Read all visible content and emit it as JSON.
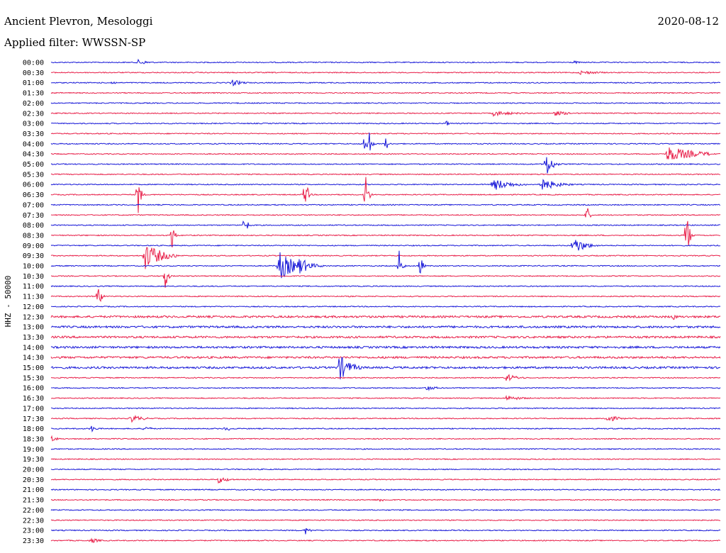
{
  "header": {
    "station": "Ancient Plevron, Mesologgi",
    "date": "2020-08-12",
    "filter": "Applied filter: WWSSN-SP"
  },
  "chart_data": {
    "type": "line",
    "title": "Ancient Plevron, Mesologgi",
    "ylabel": "HHZ - 50000",
    "y_tick_labels": [
      "00:00",
      "00:30",
      "01:00",
      "01:30",
      "02:00",
      "02:30",
      "03:00",
      "03:30",
      "04:00",
      "04:30",
      "05:00",
      "05:30",
      "06:00",
      "06:30",
      "07:00",
      "07:30",
      "08:00",
      "08:30",
      "09:00",
      "09:30",
      "10:00",
      "10:30",
      "11:00",
      "11:30",
      "12:00",
      "12:30",
      "13:00",
      "13:30",
      "14:00",
      "14:30",
      "15:00",
      "15:30",
      "16:00",
      "16:30",
      "17:00",
      "17:30",
      "18:00",
      "18:30",
      "19:00",
      "19:30",
      "20:00",
      "20:30",
      "21:00",
      "21:30",
      "22:00",
      "22:30",
      "23:00",
      "23:30"
    ],
    "trace_colors": [
      "#1a1ad8",
      "#e8204a"
    ],
    "grid": false,
    "events": [
      {
        "row": 0,
        "x": 0.13,
        "amp": 4,
        "dur": 0.02
      },
      {
        "row": 0,
        "x": 0.78,
        "amp": 3,
        "dur": 0.01
      },
      {
        "row": 1,
        "x": 0.79,
        "amp": 3,
        "dur": 0.04
      },
      {
        "row": 2,
        "x": 0.09,
        "amp": 3,
        "dur": 0.01
      },
      {
        "row": 2,
        "x": 0.27,
        "amp": 5,
        "dur": 0.02
      },
      {
        "row": 5,
        "x": 0.66,
        "amp": 4,
        "dur": 0.04
      },
      {
        "row": 5,
        "x": 0.75,
        "amp": 4,
        "dur": 0.03
      },
      {
        "row": 6,
        "x": 0.59,
        "amp": 6,
        "dur": 0.004
      },
      {
        "row": 8,
        "x": 0.47,
        "amp": 30,
        "dur": 0.004
      },
      {
        "row": 8,
        "x": 0.475,
        "amp": 24,
        "dur": 0.004
      },
      {
        "row": 8,
        "x": 0.5,
        "amp": 12,
        "dur": 0.004
      },
      {
        "row": 9,
        "x": 0.92,
        "amp": 12,
        "dur": 0.05
      },
      {
        "row": 10,
        "x": 0.74,
        "amp": 20,
        "dur": 0.01
      },
      {
        "row": 12,
        "x": 0.66,
        "amp": 10,
        "dur": 0.03
      },
      {
        "row": 12,
        "x": 0.73,
        "amp": 10,
        "dur": 0.03
      },
      {
        "row": 13,
        "x": 0.13,
        "amp": 36,
        "dur": 0.004
      },
      {
        "row": 13,
        "x": 0.38,
        "amp": 30,
        "dur": 0.004
      },
      {
        "row": 13,
        "x": 0.47,
        "amp": 40,
        "dur": 0.004
      },
      {
        "row": 15,
        "x": 0.8,
        "amp": 20,
        "dur": 0.004
      },
      {
        "row": 16,
        "x": 0.29,
        "amp": 20,
        "dur": 0.004
      },
      {
        "row": 17,
        "x": 0.18,
        "amp": 30,
        "dur": 0.004
      },
      {
        "row": 17,
        "x": 0.95,
        "amp": 44,
        "dur": 0.004
      },
      {
        "row": 18,
        "x": 0.78,
        "amp": 14,
        "dur": 0.02
      },
      {
        "row": 19,
        "x": 0.14,
        "amp": 20,
        "dur": 0.03
      },
      {
        "row": 20,
        "x": 0.34,
        "amp": 22,
        "dur": 0.03
      },
      {
        "row": 20,
        "x": 0.37,
        "amp": 14,
        "dur": 0.02
      },
      {
        "row": 20,
        "x": 0.52,
        "amp": 34,
        "dur": 0.004
      },
      {
        "row": 20,
        "x": 0.55,
        "amp": 30,
        "dur": 0.004
      },
      {
        "row": 21,
        "x": 0.17,
        "amp": 28,
        "dur": 0.004
      },
      {
        "row": 23,
        "x": 0.07,
        "amp": 32,
        "dur": 0.004
      },
      {
        "row": 25,
        "x": 0.93,
        "amp": 8,
        "dur": 0.004
      },
      {
        "row": 30,
        "x": 0.43,
        "amp": 20,
        "dur": 0.02
      },
      {
        "row": 31,
        "x": 0.68,
        "amp": 6,
        "dur": 0.02
      },
      {
        "row": 32,
        "x": 0.56,
        "amp": 4,
        "dur": 0.02
      },
      {
        "row": 33,
        "x": 0.68,
        "amp": 4,
        "dur": 0.03
      },
      {
        "row": 35,
        "x": 0.12,
        "amp": 6,
        "dur": 0.02
      },
      {
        "row": 35,
        "x": 0.83,
        "amp": 6,
        "dur": 0.02
      },
      {
        "row": 36,
        "x": 0.06,
        "amp": 5,
        "dur": 0.01
      },
      {
        "row": 36,
        "x": 0.14,
        "amp": 5,
        "dur": 0.01
      },
      {
        "row": 36,
        "x": 0.26,
        "amp": 5,
        "dur": 0.01
      },
      {
        "row": 37,
        "x": 0.0,
        "amp": 5,
        "dur": 0.01
      },
      {
        "row": 41,
        "x": 0.25,
        "amp": 5,
        "dur": 0.02
      },
      {
        "row": 43,
        "x": 0.49,
        "amp": 4,
        "dur": 0.01
      },
      {
        "row": 46,
        "x": 0.38,
        "amp": 6,
        "dur": 0.008
      },
      {
        "row": 47,
        "x": 0.06,
        "amp": 4,
        "dur": 0.015
      }
    ],
    "busy_rows": [
      25,
      26,
      27,
      28,
      29,
      30
    ]
  }
}
